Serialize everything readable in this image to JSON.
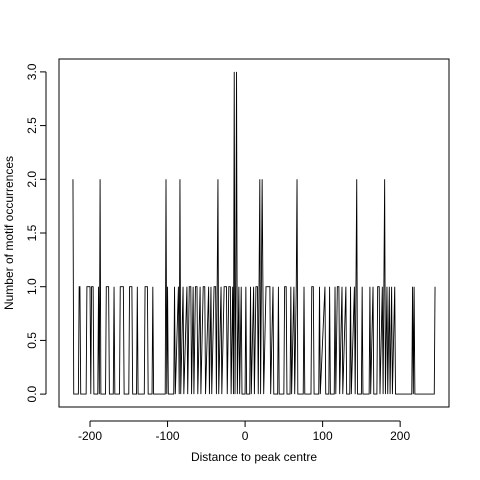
{
  "chart_data": {
    "type": "line",
    "xlabel": "Distance to peak centre",
    "ylabel": "Number of motif occurrences",
    "color": "#000000",
    "xlim": [
      -240,
      263
    ],
    "ylim": [
      -0.12,
      3.12
    ],
    "xticks": [
      -200,
      -100,
      0,
      100,
      200
    ],
    "yticks": [
      {
        "value": 0,
        "label": "0.0"
      },
      {
        "value": 0.5,
        "label": "0.5"
      },
      {
        "value": 1,
        "label": "1.0"
      },
      {
        "value": 1.5,
        "label": "1.5"
      },
      {
        "value": 2,
        "label": "2.0"
      },
      {
        "value": 2.5,
        "label": "2.5"
      },
      {
        "value": 3,
        "label": "3.0"
      }
    ],
    "x": [
      -222,
      -221,
      -215,
      -214,
      -213,
      -212,
      -205,
      -204,
      -200,
      -199,
      -198,
      -196,
      -195,
      -190,
      -189,
      -188,
      -187,
      -186,
      -180,
      -179,
      -176,
      -175,
      -170,
      -169,
      -168,
      -162,
      -161,
      -157,
      -156,
      -150,
      -149,
      -146,
      -145,
      -140,
      -139,
      -138,
      -130,
      -129,
      -126,
      -125,
      -120,
      -119,
      -118,
      -103,
      -102,
      -101,
      -100,
      -99,
      -92,
      -91,
      -90,
      -86,
      -85,
      -84,
      -83,
      -80,
      -79,
      -75,
      -74,
      -72,
      -70,
      -69,
      -67,
      -66,
      -64,
      -62,
      -61,
      -58,
      -57,
      -54,
      -52,
      -51,
      -47,
      -46,
      -44,
      -43,
      -40,
      -38,
      -37,
      -35,
      -34,
      -31,
      -30,
      -27,
      -24,
      -23,
      -21,
      -19,
      -18,
      -16,
      -15,
      -14,
      -13,
      -12,
      -11,
      -10,
      -8,
      -7,
      -5,
      -4,
      0,
      1,
      2,
      6,
      7,
      8,
      11,
      12,
      14,
      16,
      17,
      19,
      20,
      21,
      22,
      23,
      24,
      27,
      32,
      33,
      36,
      37,
      42,
      43,
      44,
      50,
      51,
      53,
      54,
      58,
      59,
      60,
      63,
      64,
      66,
      67,
      68,
      75,
      76,
      77,
      85,
      86,
      88,
      89,
      95,
      96,
      97,
      103,
      104,
      108,
      109,
      110,
      115,
      116,
      117,
      119,
      121,
      122,
      125,
      126,
      130,
      131,
      135,
      136,
      137,
      141,
      142,
      144,
      145,
      150,
      151,
      152,
      160,
      161,
      162,
      165,
      166,
      170,
      171,
      173,
      174,
      177,
      178,
      180,
      181,
      183,
      184,
      186,
      187,
      189,
      190,
      193,
      194,
      215,
      216,
      217,
      218,
      219,
      244,
      245
    ],
    "values": [
      2,
      0,
      0,
      1,
      1,
      0,
      0,
      1,
      1,
      0,
      1,
      1,
      0,
      0,
      1,
      0,
      2,
      0,
      0,
      1,
      1,
      0,
      0,
      1,
      0,
      0,
      1,
      1,
      0,
      0,
      1,
      1,
      0,
      0,
      1,
      0,
      0,
      1,
      1,
      0,
      0,
      1,
      0,
      0,
      2,
      0,
      1,
      0,
      0,
      1,
      0,
      1,
      0,
      2,
      0,
      1,
      0,
      1,
      0,
      1,
      1,
      0,
      1,
      0,
      1,
      1,
      0,
      1,
      0,
      1,
      1,
      0,
      1,
      0,
      1,
      0,
      1,
      1,
      0,
      2,
      0,
      1,
      0,
      1,
      1,
      0,
      1,
      1,
      0,
      1,
      0,
      3,
      0,
      1,
      3,
      0,
      1,
      0,
      1,
      0,
      0,
      1,
      0,
      0,
      1,
      0,
      1,
      0,
      1,
      1,
      0,
      2,
      0,
      1,
      2,
      1,
      0,
      1,
      1,
      0,
      1,
      0,
      0,
      1,
      0,
      0,
      1,
      1,
      0,
      0,
      1,
      0,
      1,
      0,
      1,
      2,
      0,
      0,
      1,
      0,
      0,
      1,
      1,
      0,
      0,
      1,
      0,
      1,
      0,
      0,
      1,
      0,
      0,
      1,
      0,
      1,
      1,
      0,
      1,
      0,
      1,
      0,
      0,
      1,
      0,
      1,
      0,
      2,
      0,
      0,
      1,
      0,
      0,
      1,
      0,
      1,
      0,
      0,
      1,
      1,
      0,
      1,
      0,
      2,
      0,
      1,
      0,
      1,
      0,
      1,
      0,
      1,
      0,
      0,
      1,
      0,
      1,
      0,
      0,
      1
    ]
  }
}
